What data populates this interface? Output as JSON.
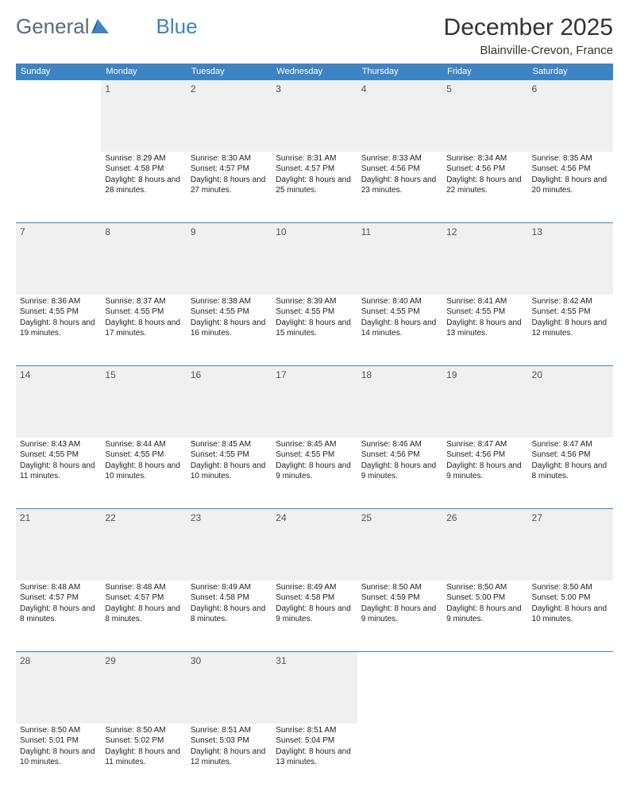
{
  "logo": {
    "text1": "General",
    "text2": "Blue"
  },
  "title": "December 2025",
  "location": "Blainville-Crevon, France",
  "colors": {
    "header_bg": "#3d84c4",
    "header_text": "#ffffff",
    "daynum_bg": "#f0f0f0",
    "border": "#3d84c4",
    "text": "#222222"
  },
  "fonts": {
    "title_size": 30,
    "location_size": 15,
    "header_size": 11,
    "cell_size": 10,
    "daynum_size": 12
  },
  "weekdays": [
    "Sunday",
    "Monday",
    "Tuesday",
    "Wednesday",
    "Thursday",
    "Friday",
    "Saturday"
  ],
  "weeks": [
    [
      null,
      {
        "d": "1",
        "sr": "8:29 AM",
        "ss": "4:58 PM",
        "dl": "8 hours and 28 minutes."
      },
      {
        "d": "2",
        "sr": "8:30 AM",
        "ss": "4:57 PM",
        "dl": "8 hours and 27 minutes."
      },
      {
        "d": "3",
        "sr": "8:31 AM",
        "ss": "4:57 PM",
        "dl": "8 hours and 25 minutes."
      },
      {
        "d": "4",
        "sr": "8:33 AM",
        "ss": "4:56 PM",
        "dl": "8 hours and 23 minutes."
      },
      {
        "d": "5",
        "sr": "8:34 AM",
        "ss": "4:56 PM",
        "dl": "8 hours and 22 minutes."
      },
      {
        "d": "6",
        "sr": "8:35 AM",
        "ss": "4:56 PM",
        "dl": "8 hours and 20 minutes."
      }
    ],
    [
      {
        "d": "7",
        "sr": "8:36 AM",
        "ss": "4:55 PM",
        "dl": "8 hours and 19 minutes."
      },
      {
        "d": "8",
        "sr": "8:37 AM",
        "ss": "4:55 PM",
        "dl": "8 hours and 17 minutes."
      },
      {
        "d": "9",
        "sr": "8:38 AM",
        "ss": "4:55 PM",
        "dl": "8 hours and 16 minutes."
      },
      {
        "d": "10",
        "sr": "8:39 AM",
        "ss": "4:55 PM",
        "dl": "8 hours and 15 minutes."
      },
      {
        "d": "11",
        "sr": "8:40 AM",
        "ss": "4:55 PM",
        "dl": "8 hours and 14 minutes."
      },
      {
        "d": "12",
        "sr": "8:41 AM",
        "ss": "4:55 PM",
        "dl": "8 hours and 13 minutes."
      },
      {
        "d": "13",
        "sr": "8:42 AM",
        "ss": "4:55 PM",
        "dl": "8 hours and 12 minutes."
      }
    ],
    [
      {
        "d": "14",
        "sr": "8:43 AM",
        "ss": "4:55 PM",
        "dl": "8 hours and 11 minutes."
      },
      {
        "d": "15",
        "sr": "8:44 AM",
        "ss": "4:55 PM",
        "dl": "8 hours and 10 minutes."
      },
      {
        "d": "16",
        "sr": "8:45 AM",
        "ss": "4:55 PM",
        "dl": "8 hours and 10 minutes."
      },
      {
        "d": "17",
        "sr": "8:45 AM",
        "ss": "4:55 PM",
        "dl": "8 hours and 9 minutes."
      },
      {
        "d": "18",
        "sr": "8:46 AM",
        "ss": "4:56 PM",
        "dl": "8 hours and 9 minutes."
      },
      {
        "d": "19",
        "sr": "8:47 AM",
        "ss": "4:56 PM",
        "dl": "8 hours and 9 minutes."
      },
      {
        "d": "20",
        "sr": "8:47 AM",
        "ss": "4:56 PM",
        "dl": "8 hours and 8 minutes."
      }
    ],
    [
      {
        "d": "21",
        "sr": "8:48 AM",
        "ss": "4:57 PM",
        "dl": "8 hours and 8 minutes."
      },
      {
        "d": "22",
        "sr": "8:48 AM",
        "ss": "4:57 PM",
        "dl": "8 hours and 8 minutes."
      },
      {
        "d": "23",
        "sr": "8:49 AM",
        "ss": "4:58 PM",
        "dl": "8 hours and 8 minutes."
      },
      {
        "d": "24",
        "sr": "8:49 AM",
        "ss": "4:58 PM",
        "dl": "8 hours and 9 minutes."
      },
      {
        "d": "25",
        "sr": "8:50 AM",
        "ss": "4:59 PM",
        "dl": "8 hours and 9 minutes."
      },
      {
        "d": "26",
        "sr": "8:50 AM",
        "ss": "5:00 PM",
        "dl": "8 hours and 9 minutes."
      },
      {
        "d": "27",
        "sr": "8:50 AM",
        "ss": "5:00 PM",
        "dl": "8 hours and 10 minutes."
      }
    ],
    [
      {
        "d": "28",
        "sr": "8:50 AM",
        "ss": "5:01 PM",
        "dl": "8 hours and 10 minutes."
      },
      {
        "d": "29",
        "sr": "8:50 AM",
        "ss": "5:02 PM",
        "dl": "8 hours and 11 minutes."
      },
      {
        "d": "30",
        "sr": "8:51 AM",
        "ss": "5:03 PM",
        "dl": "8 hours and 12 minutes."
      },
      {
        "d": "31",
        "sr": "8:51 AM",
        "ss": "5:04 PM",
        "dl": "8 hours and 13 minutes."
      },
      null,
      null,
      null
    ]
  ],
  "labels": {
    "sunrise": "Sunrise:",
    "sunset": "Sunset:",
    "daylight": "Daylight:"
  }
}
